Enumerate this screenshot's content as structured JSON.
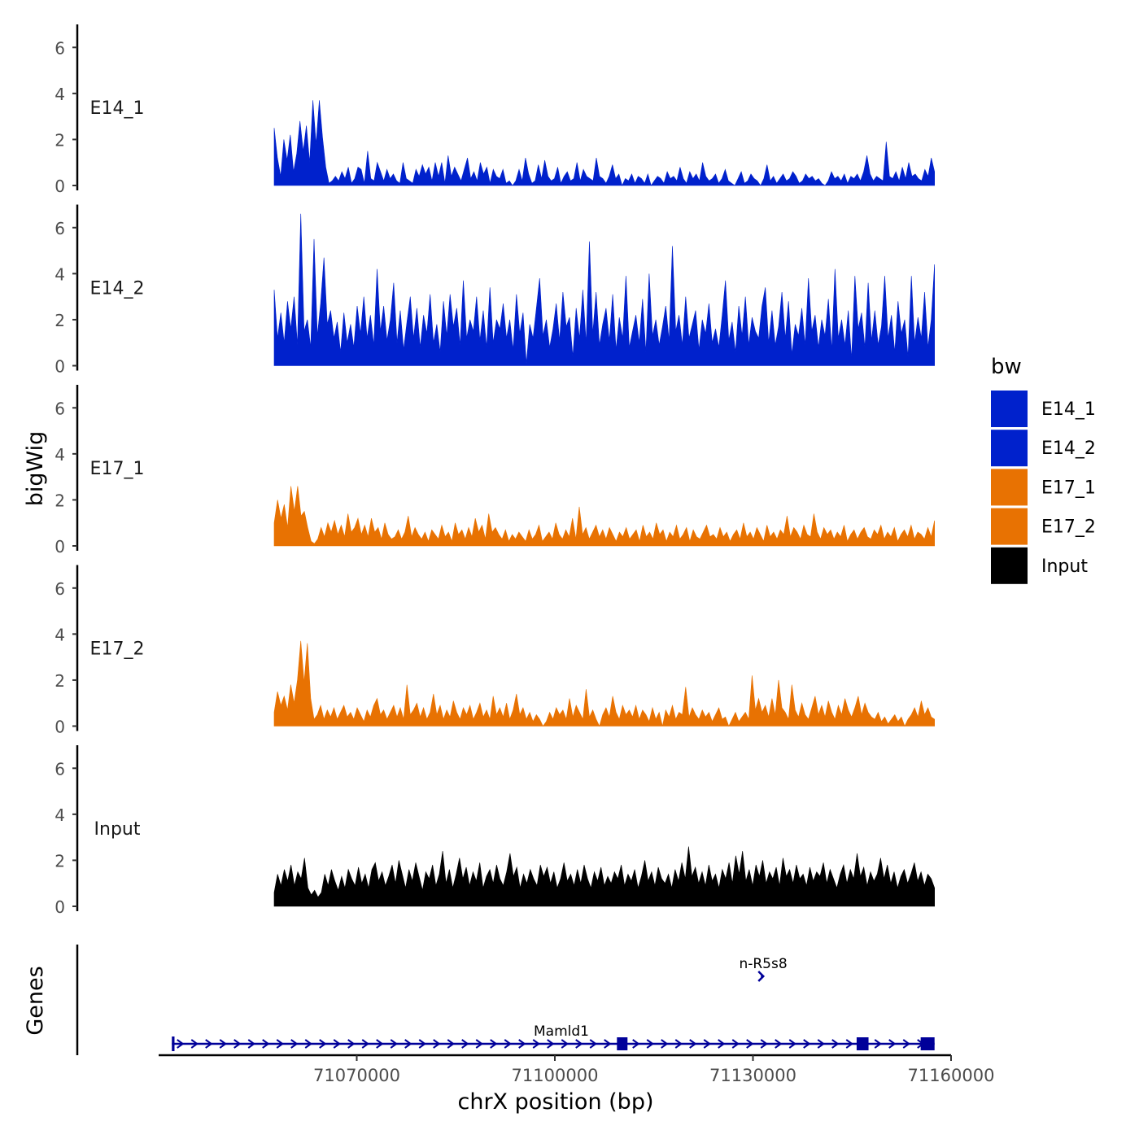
{
  "chart_data": {
    "type": "area",
    "ylabel": "bigWig",
    "xlabel": "chrX position (bp)",
    "ylim": [
      0,
      7
    ],
    "yticks": [
      0,
      2,
      4,
      6
    ],
    "xlim": [
      71040000,
      71160000
    ],
    "xticks": [
      71070000,
      71100000,
      71130000,
      71160000
    ],
    "xtick_labels": [
      "71070000",
      "71100000",
      "71130000",
      "71160000"
    ],
    "legend": {
      "title": "bw",
      "placement": "right",
      "entries": [
        {
          "label": "E14_1",
          "color": "#0021cc"
        },
        {
          "label": "E14_2",
          "color": "#0021cc"
        },
        {
          "label": "E17_1",
          "color": "#e87202"
        },
        {
          "label": "E17_2",
          "color": "#e87202"
        },
        {
          "label": "Input",
          "color": "#000000"
        }
      ]
    },
    "tracks": [
      {
        "name": "E14_1",
        "color": "#0021cc",
        "x_start": 71057500,
        "x_end": 71157500,
        "values": [
          2.5,
          1.2,
          0.4,
          2.0,
          1.1,
          2.2,
          0.6,
          1.4,
          2.8,
          1.5,
          2.6,
          1.0,
          3.7,
          1.8,
          3.7,
          2.1,
          0.8,
          0.1,
          0.2,
          0.4,
          0.2,
          0.6,
          0.3,
          0.8,
          0.1,
          0.3,
          0.8,
          0.7,
          0.1,
          1.5,
          0.3,
          0.2,
          1.0,
          0.6,
          0.2,
          0.7,
          0.3,
          0.5,
          0.2,
          0.1,
          1.0,
          0.3,
          0.2,
          0.1,
          0.7,
          0.4,
          0.9,
          0.5,
          0.8,
          0.2,
          1.0,
          0.4,
          1.0,
          0.1,
          1.3,
          0.4,
          0.8,
          0.5,
          0.2,
          0.7,
          1.2,
          0.3,
          0.6,
          0.2,
          1.0,
          0.5,
          0.8,
          0.1,
          0.7,
          0.4,
          0.3,
          0.7,
          0.1,
          0.2,
          0.0,
          0.2,
          0.7,
          0.2,
          1.2,
          0.5,
          0.1,
          0.2,
          0.9,
          0.3,
          1.1,
          0.4,
          0.2,
          0.3,
          0.8,
          0.1,
          0.4,
          0.6,
          0.2,
          0.3,
          1.0,
          0.2,
          0.7,
          0.4,
          0.3,
          0.2,
          1.2,
          0.4,
          0.3,
          0.1,
          0.4,
          0.9,
          0.3,
          0.5,
          0.0,
          0.3,
          0.2,
          0.5,
          0.1,
          0.4,
          0.3,
          0.1,
          0.5,
          0.0,
          0.2,
          0.4,
          0.3,
          0.1,
          0.6,
          0.3,
          0.4,
          0.2,
          0.8,
          0.3,
          0.1,
          0.6,
          0.3,
          0.5,
          0.2,
          1.0,
          0.4,
          0.2,
          0.3,
          0.5,
          0.1,
          0.3,
          0.7,
          0.2,
          0.1,
          0.0,
          0.3,
          0.6,
          0.1,
          0.2,
          0.5,
          0.3,
          0.2,
          0.0,
          0.3,
          0.9,
          0.2,
          0.4,
          0.1,
          0.3,
          0.5,
          0.2,
          0.3,
          0.6,
          0.4,
          0.1,
          0.2,
          0.5,
          0.3,
          0.4,
          0.2,
          0.3,
          0.1,
          0.0,
          0.2,
          0.6,
          0.3,
          0.4,
          0.2,
          0.5,
          0.1,
          0.4,
          0.3,
          0.5,
          0.2,
          0.6,
          1.3,
          0.5,
          0.2,
          0.4,
          0.3,
          0.2,
          1.9,
          0.4,
          0.3,
          0.6,
          0.2,
          0.8,
          0.3,
          1.0,
          0.4,
          0.5,
          0.3,
          0.2,
          0.7,
          0.4,
          1.2,
          0.6
        ]
      },
      {
        "name": "E14_2",
        "color": "#0021cc",
        "x_start": 71057500,
        "x_end": 71157500,
        "values": [
          3.3,
          1.2,
          2.3,
          1.0,
          2.8,
          1.6,
          3.0,
          0.9,
          6.6,
          1.5,
          2.0,
          0.8,
          5.5,
          1.3,
          2.7,
          4.7,
          1.8,
          2.4,
          1.2,
          1.9,
          0.6,
          2.3,
          1.0,
          1.8,
          0.8,
          2.6,
          1.4,
          3.0,
          1.2,
          2.2,
          0.9,
          4.2,
          1.5,
          2.6,
          1.1,
          2.0,
          3.6,
          1.0,
          2.4,
          0.7,
          1.9,
          3.0,
          1.2,
          2.5,
          0.8,
          2.2,
          1.4,
          3.1,
          1.0,
          1.8,
          0.6,
          2.8,
          1.3,
          3.1,
          1.7,
          2.5,
          0.9,
          3.7,
          1.2,
          2.0,
          1.5,
          3.0,
          1.1,
          2.4,
          0.8,
          3.4,
          1.0,
          2.0,
          1.6,
          2.7,
          1.2,
          2.0,
          0.7,
          3.1,
          1.4,
          2.3,
          0.1,
          1.8,
          1.2,
          2.5,
          3.8,
          1.3,
          2.0,
          0.8,
          1.6,
          2.7,
          1.1,
          3.2,
          1.7,
          2.1,
          0.4,
          2.5,
          1.2,
          3.3,
          1.0,
          5.4,
          1.4,
          3.2,
          0.9,
          1.8,
          2.5,
          1.1,
          3.1,
          0.7,
          2.1,
          1.2,
          3.9,
          0.8,
          1.5,
          2.2,
          1.0,
          2.9,
          0.6,
          4.0,
          1.3,
          2.0,
          0.9,
          1.7,
          2.6,
          1.1,
          5.2,
          1.5,
          2.2,
          0.9,
          3.0,
          1.2,
          1.8,
          2.4,
          0.7,
          2.0,
          1.4,
          2.7,
          1.0,
          1.6,
          0.8,
          2.2,
          3.7,
          1.1,
          1.9,
          0.6,
          2.6,
          1.3,
          3.0,
          0.9,
          2.1,
          1.5,
          1.2,
          2.6,
          3.4,
          1.0,
          2.4,
          0.9,
          1.7,
          3.2,
          1.2,
          2.8,
          0.5,
          1.8,
          1.3,
          2.5,
          0.9,
          3.8,
          1.5,
          2.2,
          0.8,
          2.0,
          1.3,
          2.9,
          0.7,
          4.2,
          1.2,
          2.0,
          0.9,
          2.4,
          0.3,
          3.9,
          1.6,
          2.3,
          0.8,
          3.6,
          1.1,
          2.4,
          0.9,
          1.7,
          3.9,
          1.2,
          2.2,
          0.6,
          2.8,
          1.4,
          2.0,
          0.4,
          3.9,
          1.0,
          2.1,
          1.2,
          3.2,
          0.8,
          2.0,
          4.4
        ]
      },
      {
        "name": "E17_1",
        "color": "#e87202",
        "x_start": 71057500,
        "x_end": 71157500,
        "values": [
          1.0,
          2.0,
          1.2,
          1.8,
          0.8,
          2.6,
          1.5,
          2.6,
          1.3,
          1.5,
          0.8,
          0.2,
          0.1,
          0.3,
          0.8,
          0.4,
          1.0,
          0.6,
          1.1,
          0.5,
          0.9,
          0.4,
          1.4,
          0.6,
          0.8,
          1.2,
          0.5,
          0.9,
          0.4,
          1.2,
          0.6,
          0.8,
          0.3,
          1.0,
          0.5,
          0.3,
          0.4,
          0.7,
          0.3,
          0.6,
          1.3,
          0.4,
          0.8,
          0.5,
          0.3,
          0.6,
          0.2,
          0.7,
          0.5,
          0.3,
          0.9,
          0.4,
          0.6,
          0.2,
          1.0,
          0.5,
          0.7,
          0.3,
          0.8,
          0.4,
          1.2,
          0.6,
          0.9,
          0.3,
          1.4,
          0.6,
          0.8,
          0.5,
          0.3,
          0.7,
          0.2,
          0.5,
          0.3,
          0.6,
          0.4,
          0.2,
          0.7,
          0.3,
          0.5,
          0.9,
          0.2,
          0.4,
          0.6,
          0.3,
          1.0,
          0.5,
          0.3,
          0.7,
          0.4,
          1.2,
          0.3,
          1.7,
          0.5,
          0.8,
          0.3,
          0.6,
          0.9,
          0.4,
          0.7,
          0.3,
          0.8,
          0.5,
          0.2,
          0.6,
          0.4,
          0.8,
          0.3,
          0.5,
          0.7,
          0.2,
          0.9,
          0.4,
          0.6,
          0.3,
          1.0,
          0.5,
          0.7,
          0.2,
          0.6,
          0.4,
          0.9,
          0.3,
          0.5,
          0.8,
          0.2,
          0.7,
          0.4,
          0.3,
          0.6,
          0.9,
          0.4,
          0.5,
          0.3,
          0.8,
          0.4,
          0.6,
          0.2,
          0.5,
          0.7,
          0.3,
          1.0,
          0.4,
          0.6,
          0.3,
          0.8,
          0.5,
          0.2,
          0.9,
          0.4,
          0.6,
          0.3,
          0.7,
          0.5,
          1.3,
          0.4,
          0.8,
          0.6,
          0.3,
          0.9,
          0.5,
          0.4,
          1.4,
          0.6,
          0.3,
          0.8,
          0.5,
          0.7,
          0.3,
          0.6,
          0.4,
          0.9,
          0.2,
          0.5,
          0.7,
          0.3,
          0.6,
          0.8,
          0.4,
          0.3,
          0.7,
          0.5,
          0.9,
          0.3,
          0.6,
          0.4,
          0.8,
          0.2,
          0.5,
          0.7,
          0.4,
          0.9,
          0.3,
          0.6,
          0.5,
          0.3,
          0.8,
          0.4,
          1.1
        ]
      },
      {
        "name": "E17_2",
        "color": "#e87202",
        "x_start": 71057500,
        "x_end": 71157500,
        "values": [
          0.6,
          1.5,
          0.9,
          1.3,
          0.7,
          1.8,
          1.0,
          2.0,
          3.7,
          1.9,
          3.6,
          1.2,
          0.3,
          0.5,
          0.9,
          0.3,
          0.7,
          0.4,
          0.8,
          0.3,
          0.6,
          0.9,
          0.4,
          0.6,
          0.3,
          0.8,
          0.5,
          0.2,
          0.7,
          0.4,
          0.9,
          1.2,
          0.5,
          0.7,
          0.3,
          0.6,
          0.9,
          0.4,
          0.8,
          0.3,
          1.8,
          0.5,
          0.7,
          1.0,
          0.4,
          0.8,
          0.3,
          0.6,
          1.4,
          0.5,
          0.9,
          0.3,
          0.7,
          0.4,
          1.1,
          0.6,
          0.3,
          0.8,
          0.5,
          0.9,
          0.3,
          0.6,
          1.0,
          0.4,
          0.7,
          0.3,
          1.3,
          0.5,
          0.8,
          0.4,
          1.0,
          0.3,
          0.7,
          1.4,
          0.5,
          0.8,
          0.3,
          0.6,
          0.2,
          0.5,
          0.3,
          0.0,
          0.2,
          0.6,
          0.3,
          0.8,
          0.5,
          0.7,
          0.3,
          1.2,
          0.4,
          0.9,
          0.6,
          0.3,
          1.6,
          0.4,
          0.7,
          0.3,
          0.0,
          0.5,
          0.8,
          0.4,
          1.3,
          0.6,
          0.3,
          0.9,
          0.5,
          0.7,
          0.4,
          0.9,
          0.3,
          0.7,
          0.5,
          0.2,
          0.8,
          0.3,
          0.6,
          0.0,
          0.7,
          0.4,
          0.9,
          0.3,
          0.6,
          0.5,
          1.7,
          0.4,
          0.8,
          0.5,
          0.3,
          0.7,
          0.4,
          0.6,
          0.2,
          0.5,
          0.8,
          0.3,
          0.4,
          0.0,
          0.3,
          0.6,
          0.2,
          0.4,
          0.6,
          0.3,
          2.2,
          0.7,
          1.2,
          0.6,
          0.9,
          0.4,
          1.2,
          0.5,
          2.0,
          0.8,
          0.6,
          0.3,
          1.8,
          0.7,
          0.4,
          1.0,
          0.5,
          0.3,
          0.8,
          1.3,
          0.5,
          0.9,
          0.4,
          1.1,
          0.6,
          0.3,
          0.9,
          0.5,
          1.2,
          0.7,
          0.4,
          0.8,
          1.3,
          0.5,
          1.0,
          0.6,
          0.4,
          0.3,
          0.6,
          0.2,
          0.4,
          0.1,
          0.3,
          0.5,
          0.2,
          0.4,
          0.0,
          0.3,
          0.5,
          0.8,
          0.4,
          1.1,
          0.5,
          0.8,
          0.4,
          0.3
        ]
      },
      {
        "name": "Input",
        "color": "#000000",
        "x_start": 71057500,
        "x_end": 71157500,
        "values": [
          0.6,
          1.4,
          0.9,
          1.6,
          1.1,
          1.8,
          0.9,
          1.5,
          1.2,
          2.1,
          0.8,
          0.5,
          0.7,
          0.4,
          0.6,
          1.4,
          0.9,
          1.6,
          1.1,
          0.7,
          1.3,
          0.8,
          1.6,
          1.2,
          0.9,
          1.7,
          1.0,
          1.4,
          0.8,
          1.6,
          1.9,
          1.1,
          1.5,
          0.9,
          1.3,
          1.8,
          1.0,
          2.0,
          1.4,
          0.8,
          1.6,
          1.1,
          1.9,
          1.3,
          0.7,
          1.5,
          1.2,
          1.8,
          0.9,
          1.4,
          2.4,
          1.0,
          1.6,
          0.8,
          1.4,
          2.1,
          1.2,
          1.7,
          0.9,
          1.5,
          1.1,
          1.9,
          0.8,
          1.3,
          1.6,
          1.0,
          1.8,
          1.2,
          0.9,
          1.5,
          2.3,
          1.3,
          1.7,
          0.8,
          1.4,
          1.0,
          1.6,
          1.2,
          0.9,
          1.8,
          1.3,
          1.7,
          1.0,
          1.5,
          0.8,
          1.2,
          1.9,
          1.1,
          1.4,
          0.9,
          1.6,
          1.0,
          1.8,
          1.2,
          0.8,
          1.5,
          1.1,
          1.7,
          0.9,
          1.3,
          1.0,
          1.5,
          1.2,
          1.8,
          0.9,
          1.4,
          1.1,
          1.6,
          0.8,
          1.3,
          2.0,
          1.1,
          1.5,
          0.9,
          1.7,
          1.2,
          1.0,
          1.4,
          0.8,
          1.6,
          1.1,
          1.9,
          1.2,
          2.6,
          1.3,
          1.7,
          1.0,
          1.5,
          0.9,
          1.8,
          1.1,
          1.4,
          0.8,
          1.6,
          1.2,
          1.9,
          1.0,
          2.2,
          1.4,
          2.4,
          1.1,
          1.6,
          0.9,
          1.8,
          1.3,
          2.0,
          1.0,
          1.5,
          1.2,
          1.7,
          0.9,
          2.1,
          1.3,
          1.6,
          1.0,
          1.8,
          1.2,
          1.4,
          0.9,
          1.7,
          1.1,
          1.5,
          1.3,
          1.9,
          1.0,
          1.6,
          1.2,
          0.8,
          1.4,
          1.8,
          1.0,
          1.6,
          1.2,
          2.3,
          1.3,
          1.7,
          0.9,
          1.5,
          1.1,
          1.4,
          2.1,
          1.2,
          1.8,
          1.0,
          1.5,
          0.8,
          1.3,
          1.6,
          1.0,
          1.4,
          1.9,
          1.1,
          1.5,
          0.9,
          1.4,
          1.2,
          0.8
        ]
      }
    ],
    "genes": {
      "label": "Genes",
      "color": "#000099",
      "items": [
        {
          "name": "Mamld1",
          "start": 71042000,
          "end": 71157500,
          "strand": "+",
          "exons": [
            [
              71042000,
              71042400
            ],
            [
              71109400,
              71111000
            ],
            [
              71145700,
              71147500
            ],
            [
              71155400,
              71157500
            ]
          ]
        },
        {
          "name": "n-R5s8",
          "start": 71131200,
          "end": 71131400,
          "strand": "+",
          "exons": []
        }
      ]
    }
  }
}
